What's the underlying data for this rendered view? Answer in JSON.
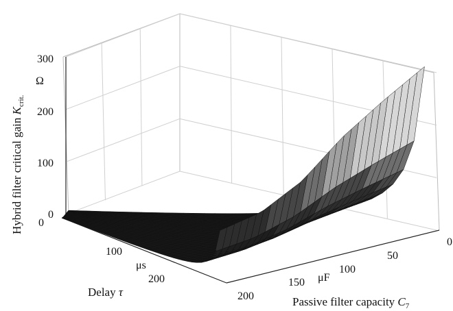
{
  "chart_data": {
    "type": "surface3d",
    "zlabel": {
      "text": "Hybrid filter critical gain ",
      "symbol": "K",
      "subscript": "crit."
    },
    "zunit": "Ω",
    "ylabel": {
      "text": "Delay ",
      "symbol": "τ"
    },
    "yunit": "μs",
    "xlabel": {
      "text": "Passive filter capacity ",
      "symbol": "C",
      "subscript": "7"
    },
    "xunit": "μF",
    "xticks": [
      "0",
      "50",
      "100",
      "150",
      "200"
    ],
    "yticks": [
      "0",
      "100",
      "200"
    ],
    "zticks": [
      "0",
      "100",
      "200",
      "300"
    ],
    "xlim": [
      0,
      200
    ],
    "ylim": [
      0,
      250
    ],
    "zlim": [
      0,
      300
    ],
    "grid": true,
    "colormap": "gray",
    "surface": {
      "description_of_values": "critical gain K vs capacity C7 and delay tau",
      "c_knee": [
        {
          "tau": 0,
          "c7_at_max": 8,
          "k_max": 310
        },
        {
          "tau": 50,
          "c7_at_max": 8,
          "k_max": 265
        },
        {
          "tau": 100,
          "c7_at_max": 8,
          "k_max": 215
        },
        {
          "tau": 150,
          "c7_at_max": 8,
          "k_max": 150
        },
        {
          "tau": 200,
          "c7_at_max": 8,
          "k_max": 110
        },
        {
          "tau": 250,
          "c7_at_max": 8,
          "k_max": 95
        }
      ]
    }
  }
}
